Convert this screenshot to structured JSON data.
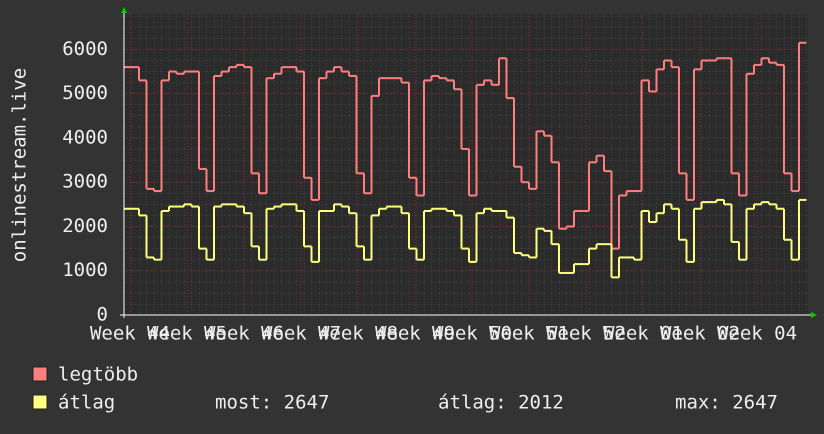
{
  "chart_data": {
    "type": "line",
    "y_label": "onlinestream.live",
    "xlim": [
      0,
      91.2
    ],
    "ylim": [
      0,
      6800
    ],
    "xticks": [
      {
        "value": 0.8,
        "label": "Week 44"
      },
      {
        "value": 8.4,
        "label": "Week 45"
      },
      {
        "value": 16,
        "label": "Week 46"
      },
      {
        "value": 23.6,
        "label": "Week 47"
      },
      {
        "value": 31.2,
        "label": "Week 48"
      },
      {
        "value": 38.8,
        "label": "Week 49"
      },
      {
        "value": 46.4,
        "label": "Week 50"
      },
      {
        "value": 54,
        "label": "Week 51"
      },
      {
        "value": 61.6,
        "label": "Week 52"
      },
      {
        "value": 69.2,
        "label": "Week 01"
      },
      {
        "value": 76.8,
        "label": "Week 02"
      },
      {
        "value": 84.4,
        "label": "Week 04"
      }
    ],
    "yticks": [
      0,
      1000,
      2000,
      3000,
      4000,
      5000,
      6000
    ],
    "grid": true,
    "x": [
      0,
      1,
      2,
      3,
      4,
      5,
      6,
      7,
      8,
      9,
      10,
      11,
      12,
      13,
      14,
      15,
      16,
      17,
      18,
      19,
      20,
      21,
      22,
      23,
      24,
      25,
      26,
      27,
      28,
      29,
      30,
      31,
      32,
      33,
      34,
      35,
      36,
      37,
      38,
      39,
      40,
      41,
      42,
      43,
      44,
      45,
      46,
      47,
      48,
      49,
      50,
      51,
      52,
      53,
      54,
      55,
      56,
      57,
      58,
      59,
      60,
      61,
      62,
      63,
      64,
      65,
      66,
      67,
      68,
      69,
      70,
      71,
      72,
      73,
      74,
      75,
      76,
      77,
      78,
      79,
      80,
      81,
      82,
      83,
      84,
      85,
      86,
      87,
      88,
      89,
      90
    ],
    "series": [
      {
        "name": "legtöbb",
        "color": "#ff7f7f",
        "values": [
          5600,
          5600,
          5300,
          2850,
          2800,
          5300,
          5500,
          5450,
          5500,
          5500,
          3300,
          2800,
          5400,
          5500,
          5600,
          5650,
          5600,
          3200,
          2750,
          5350,
          5450,
          5600,
          5600,
          5500,
          3100,
          2600,
          5350,
          5500,
          5600,
          5500,
          5400,
          3200,
          2750,
          4950,
          5350,
          5350,
          5350,
          5250,
          3100,
          2700,
          5300,
          5400,
          5350,
          5300,
          5100,
          3750,
          2700,
          5200,
          5300,
          5200,
          5800,
          4900,
          3350,
          3000,
          2850,
          4150,
          4050,
          3450,
          1950,
          2000,
          2350,
          2350,
          3450,
          3600,
          3250,
          1500,
          2700,
          2800,
          2800,
          5300,
          5050,
          5550,
          5750,
          5600,
          3200,
          2600,
          5550,
          5750,
          5750,
          5800,
          5800,
          3200,
          2700,
          5450,
          5650,
          5800,
          5700,
          5650,
          3200,
          2800,
          6150
        ]
      },
      {
        "name": "átlag",
        "color": "#ffff7f",
        "values": [
          2400,
          2400,
          2250,
          1300,
          1250,
          2350,
          2450,
          2450,
          2500,
          2450,
          1500,
          1250,
          2450,
          2500,
          2500,
          2450,
          2300,
          1550,
          1250,
          2400,
          2450,
          2500,
          2500,
          2350,
          1550,
          1200,
          2350,
          2350,
          2500,
          2450,
          2300,
          1550,
          1250,
          2250,
          2400,
          2450,
          2450,
          2300,
          1500,
          1250,
          2350,
          2400,
          2400,
          2350,
          2250,
          1500,
          1200,
          2300,
          2400,
          2350,
          2350,
          2200,
          1400,
          1350,
          1300,
          1950,
          1900,
          1600,
          950,
          950,
          1150,
          1150,
          1500,
          1600,
          1600,
          850,
          1300,
          1300,
          1250,
          2350,
          2100,
          2300,
          2500,
          2400,
          1700,
          1200,
          2400,
          2550,
          2550,
          2600,
          2500,
          1650,
          1250,
          2400,
          2500,
          2550,
          2500,
          2400,
          1700,
          1250,
          2600
        ]
      }
    ],
    "legend_stats": [
      "most: 2647",
      "átlag: 2012",
      "max: 2647"
    ]
  }
}
